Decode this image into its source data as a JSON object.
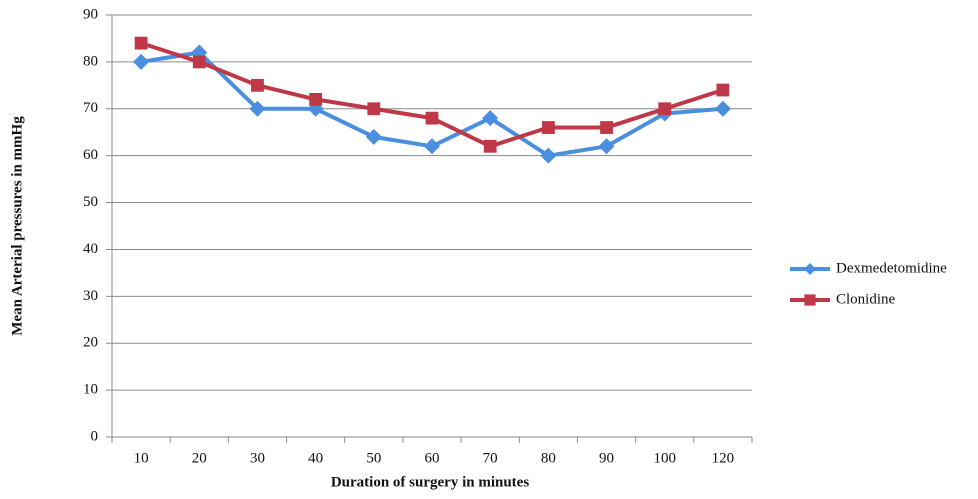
{
  "chart_data": {
    "type": "line",
    "x_label": "Duration of surgery in minutes",
    "y_label": "Mean Arterial pressures in mmHg",
    "categories": [
      "10",
      "20",
      "30",
      "40",
      "50",
      "60",
      "70",
      "80",
      "90",
      "100",
      "120"
    ],
    "series": [
      {
        "name": "Dexmedetomidine",
        "color": "#4a8ee0",
        "marker": "diamond",
        "values": [
          80,
          82,
          70,
          70,
          64,
          62,
          68,
          60,
          62,
          69,
          70
        ]
      },
      {
        "name": "Clonidine",
        "color": "#be3848",
        "marker": "square",
        "values": [
          84,
          80,
          75,
          72,
          70,
          68,
          62,
          66,
          66,
          70,
          74
        ]
      }
    ],
    "ylim": [
      0,
      90
    ],
    "yticks": [
      0,
      10,
      20,
      30,
      40,
      50,
      60,
      70,
      80,
      90
    ],
    "grid": true,
    "legend": "right"
  }
}
